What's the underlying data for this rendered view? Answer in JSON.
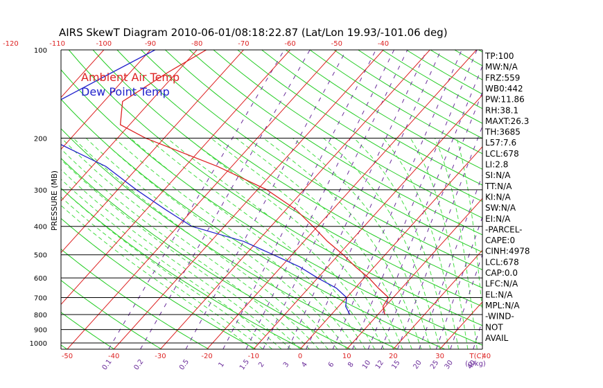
{
  "chart_data": {
    "type": "line",
    "title": "AIRS SkewT Diagram 2010-06-01/08:18:22.87 (Lat/Lon 19.93/-101.06 deg)",
    "ylabel": "PRESSURE (MB)",
    "xlabel_temp": "T(C)",
    "xlabel_mix": "(g/kg)",
    "pressure_ticks": [
      100,
      200,
      300,
      400,
      500,
      600,
      700,
      800,
      900,
      1000
    ],
    "bottom_temp_ticks": [
      -50,
      -40,
      -30,
      -20,
      -10,
      0,
      10,
      20,
      30,
      40
    ],
    "top_temp_ticks": [
      -120,
      -110,
      -100,
      -90,
      -80,
      -70,
      -60,
      -50,
      -40
    ],
    "mixing_ratio_ticks": [
      "0.1",
      "0.2",
      "0.5",
      "1",
      "1.5",
      "2",
      "3",
      "4",
      "6",
      "8",
      "10",
      "12",
      "15",
      "20",
      "25",
      "30",
      "40"
    ],
    "legend": [
      {
        "label": "Ambient Air Temp",
        "color": "#dd2222"
      },
      {
        "label": "Dew Point Temp",
        "color": "#2222cc"
      }
    ],
    "series": [
      {
        "name": "Ambient Air Temp",
        "color": "#dd2222",
        "points": [
          [
            100,
            -78
          ],
          [
            120,
            -82
          ],
          [
            150,
            -86
          ],
          [
            180,
            -82
          ],
          [
            200,
            -74
          ],
          [
            250,
            -53
          ],
          [
            300,
            -38
          ],
          [
            350,
            -28
          ],
          [
            400,
            -21
          ],
          [
            450,
            -15
          ],
          [
            500,
            -9
          ],
          [
            550,
            -4
          ],
          [
            600,
            1
          ],
          [
            650,
            5
          ],
          [
            700,
            9
          ],
          [
            750,
            9.5
          ],
          [
            800,
            11.5
          ]
        ]
      },
      {
        "name": "Dew Point Temp",
        "color": "#2222cc",
        "points": [
          [
            100,
            -89
          ],
          [
            120,
            -94
          ],
          [
            150,
            -100
          ],
          [
            180,
            -98
          ],
          [
            200,
            -95
          ],
          [
            250,
            -77
          ],
          [
            300,
            -66
          ],
          [
            350,
            -56
          ],
          [
            400,
            -47
          ],
          [
            450,
            -33
          ],
          [
            500,
            -24
          ],
          [
            550,
            -16
          ],
          [
            600,
            -10
          ],
          [
            650,
            -4
          ],
          [
            700,
            0
          ],
          [
            750,
            1.5
          ],
          [
            800,
            4
          ]
        ]
      }
    ],
    "indices": [
      "TP:100",
      "MW:N/A",
      "FRZ:559",
      "WB0:442",
      "PW:11.86",
      "RH:38.1",
      "MAXT:26.3",
      "TH:3685",
      "L57:7.6",
      "LCL:678",
      "LI:2.8",
      "SI:N/A",
      "TT:N/A",
      "KI:N/A",
      "SW:N/A",
      "EI:N/A",
      "-PARCEL-",
      "CAPE:0",
      "CINH:4978",
      "LCL:678",
      "CAP:0.0",
      "LFC:N/A",
      "EL:N/A",
      "MPL:N/A",
      "-WIND-",
      "NOT",
      "AVAIL"
    ],
    "colors": {
      "isotherm": "#dd2222",
      "dry_adiabat": "#22cc22",
      "moist_adiabat": "#44dd44",
      "mixing_ratio": "#6a2c9a",
      "axis": "#000000"
    }
  }
}
